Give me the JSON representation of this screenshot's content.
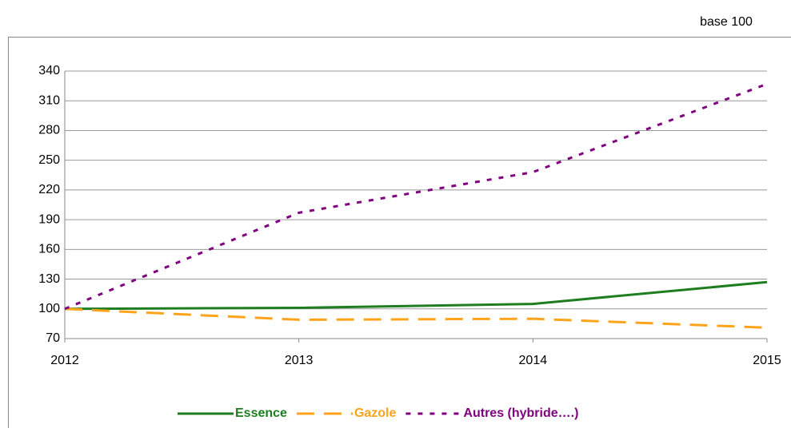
{
  "chart_data": {
    "type": "line",
    "note": "base 100",
    "x": [
      2012,
      2013,
      2014,
      2015
    ],
    "xlim": [
      2012,
      2015
    ],
    "xticks": [
      2012,
      2013,
      2014,
      2015
    ],
    "ylim": [
      70,
      340
    ],
    "yticks": [
      70,
      100,
      130,
      160,
      190,
      220,
      250,
      280,
      310,
      340
    ],
    "grid": true,
    "series": [
      {
        "name": "Essence",
        "color": "#1e7d1e",
        "dash": "solid",
        "values": [
          100,
          101,
          105,
          127
        ]
      },
      {
        "name": "Gazole",
        "color": "#ffa31a",
        "dash": "dashed",
        "values": [
          100,
          89,
          90,
          81
        ]
      },
      {
        "name": "Autres (hybride….)",
        "color": "#800080",
        "dash": "dotted",
        "values": [
          100,
          197,
          238,
          327
        ]
      }
    ]
  }
}
